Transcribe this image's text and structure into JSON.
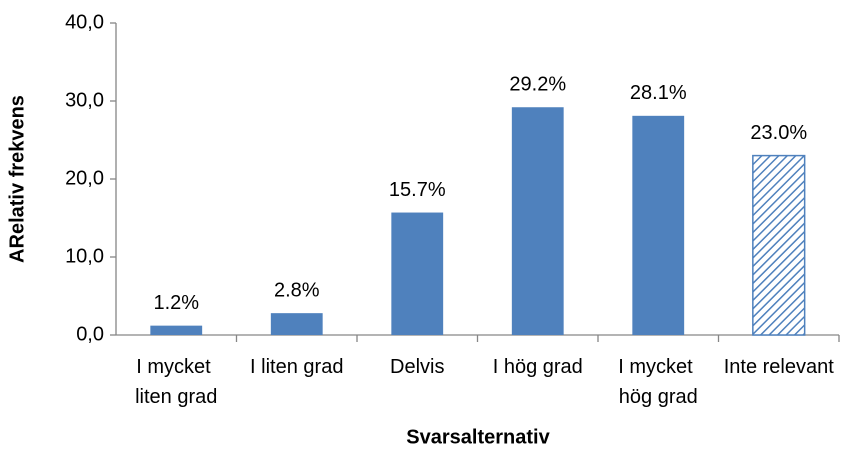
{
  "chart_data": {
    "type": "bar",
    "categories": [
      "I mycket liten grad",
      "I liten grad",
      "Delvis",
      "I hög grad",
      "I mycket hög grad",
      "Inte relevant"
    ],
    "values": [
      1.2,
      2.8,
      15.7,
      29.2,
      28.1,
      23.0
    ],
    "value_labels": [
      "1.2%",
      "2.8%",
      "15.7%",
      "29.2%",
      "28.1%",
      "23.0%"
    ],
    "color": "#4f81bd",
    "patterns": [
      "solid",
      "solid",
      "solid",
      "solid",
      "solid",
      "hatched"
    ],
    "ylim": [
      0,
      40
    ],
    "yticks": [
      {
        "value": 0,
        "label": "0,0"
      },
      {
        "value": 10,
        "label": "10,0"
      },
      {
        "value": 20,
        "label": "20,0"
      },
      {
        "value": 30,
        "label": "30,0"
      },
      {
        "value": 40,
        "label": "40,0"
      }
    ],
    "x_label": "Svarsalternativ",
    "y_label": "ARelativ frekvens",
    "grid": false
  }
}
